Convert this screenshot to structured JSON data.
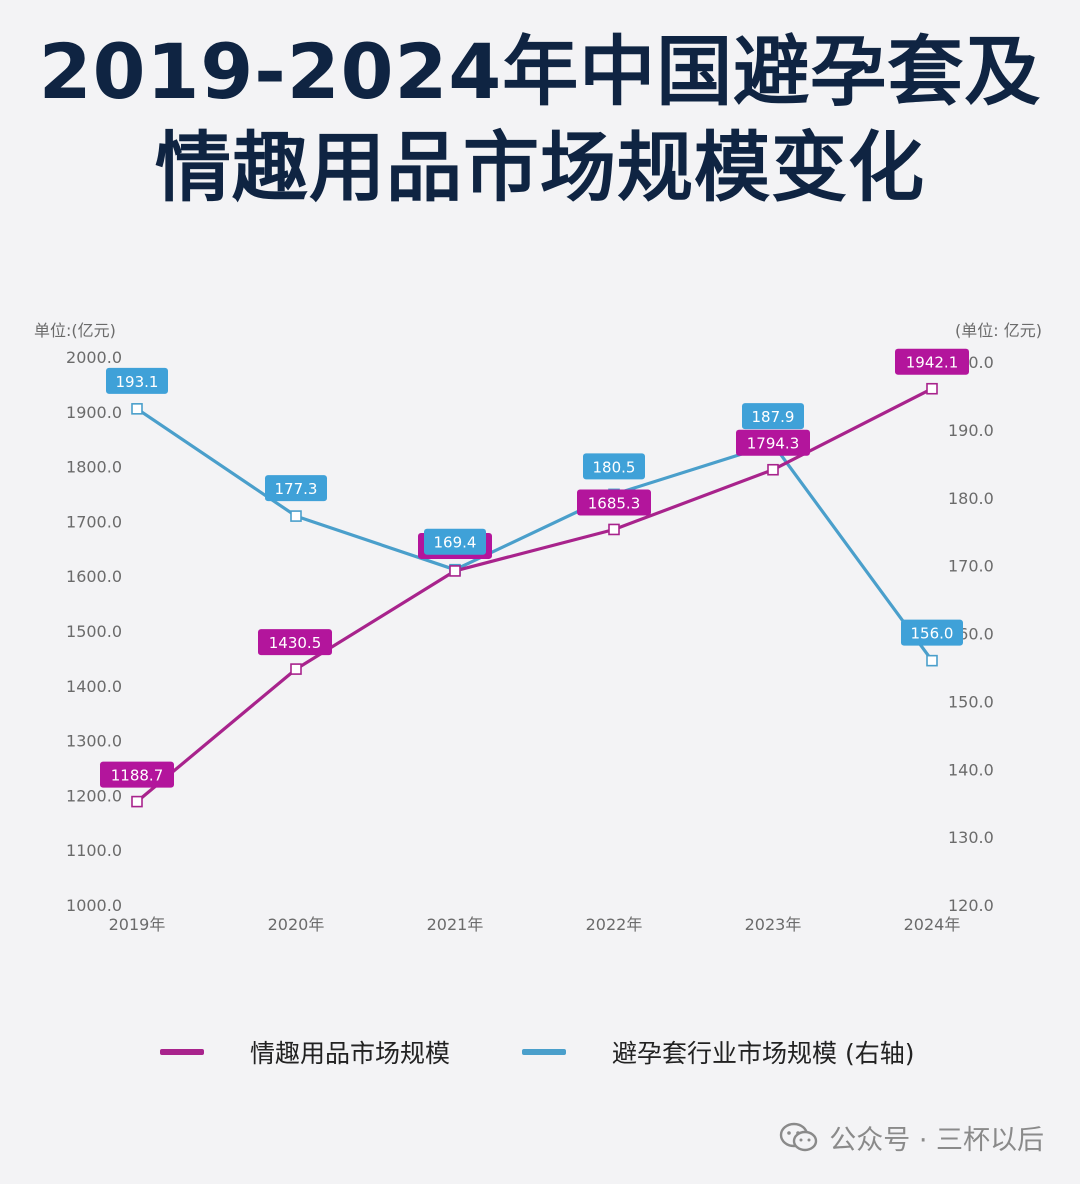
{
  "title": {
    "line1": "2019-2024年中国避孕套及",
    "line2": "情趣用品市场规模变化"
  },
  "chart_data": {
    "type": "line",
    "categories": [
      "2019年",
      "2020年",
      "2021年",
      "2022年",
      "2023年",
      "2024年"
    ],
    "left_axis": {
      "unit_label": "单位:(亿元)",
      "ylim": [
        1000.0,
        2000.0
      ],
      "ticks": [
        "1000.0",
        "1100.0",
        "1200.0",
        "1300.0",
        "1400.0",
        "1500.0",
        "1600.0",
        "1700.0",
        "1800.0",
        "1900.0",
        "2000.0"
      ]
    },
    "right_axis": {
      "unit_label": "(单位: 亿元)",
      "ylim": [
        120.0,
        200.0
      ],
      "ticks": [
        "120.0",
        "130.0",
        "140.0",
        "150.0",
        "160.0",
        "170.0",
        "180.0",
        "190.0",
        "200.0"
      ]
    },
    "series": [
      {
        "name": "情趣用品市场规模",
        "axis": "left",
        "color": "#a8238c",
        "label_color": "#b3159c",
        "values": [
          1188.7,
          1430.5,
          1609.6,
          1685.3,
          1794.3,
          1942.1
        ],
        "labels": [
          "1188.7",
          "1430.5",
          "1609.6",
          "1685.3",
          "1794.3",
          "1942.1"
        ]
      },
      {
        "name": "避孕套行业市场规模 (右轴)",
        "axis": "right",
        "color": "#4a9fcb",
        "label_color": "#3fa1d8",
        "values": [
          193.1,
          177.3,
          169.4,
          180.5,
          187.9,
          156.0
        ],
        "labels": [
          "193.1",
          "177.3",
          "169.4",
          "180.5",
          "187.9",
          "156.0"
        ]
      }
    ],
    "grid": false,
    "legend_position": "bottom"
  },
  "watermark": {
    "text": "公众号 · 三杯以后",
    "icon": "wechat-icon"
  }
}
